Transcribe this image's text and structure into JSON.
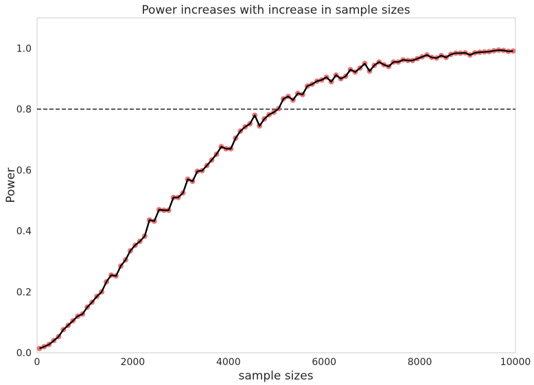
{
  "chart_data": {
    "type": "line",
    "title": "Power increases with increase in sample sizes",
    "xlabel": "sample sizes",
    "ylabel": "Power",
    "xlim": [
      0,
      10000
    ],
    "ylim": [
      0,
      1.1
    ],
    "xticks": [
      0,
      2000,
      4000,
      6000,
      8000,
      10000
    ],
    "xtick_labels": [
      "0",
      "2000",
      "4000",
      "6000",
      "8000",
      "10000"
    ],
    "yticks": [
      0.0,
      0.2,
      0.4,
      0.6,
      0.8,
      1.0
    ],
    "ytick_labels": [
      "0.0",
      "0.2",
      "0.4",
      "0.6",
      "0.8",
      "1.0"
    ],
    "grid": false,
    "reference_line": {
      "y": 0.8,
      "style": "dashed",
      "color": "#333333"
    },
    "line_color": "#000000",
    "marker_color": "#e8696b",
    "x": [
      50,
      150,
      250,
      350,
      450,
      550,
      650,
      750,
      850,
      950,
      1050,
      1150,
      1250,
      1350,
      1450,
      1550,
      1650,
      1750,
      1850,
      1950,
      2050,
      2150,
      2250,
      2350,
      2450,
      2550,
      2650,
      2750,
      2850,
      2950,
      3050,
      3150,
      3250,
      3350,
      3450,
      3550,
      3650,
      3750,
      3850,
      3950,
      4050,
      4150,
      4250,
      4350,
      4450,
      4550,
      4650,
      4750,
      4850,
      4950,
      5050,
      5150,
      5250,
      5350,
      5450,
      5550,
      5650,
      5750,
      5850,
      5950,
      6050,
      6150,
      6250,
      6350,
      6450,
      6550,
      6650,
      6750,
      6850,
      6950,
      7050,
      7150,
      7250,
      7350,
      7450,
      7550,
      7650,
      7750,
      7850,
      7950,
      8050,
      8150,
      8250,
      8350,
      8450,
      8550,
      8650,
      8750,
      8850,
      8950,
      9050,
      9150,
      9250,
      9350,
      9450,
      9550,
      9650,
      9750,
      9850,
      9950
    ],
    "values": [
      0.014,
      0.02,
      0.027,
      0.04,
      0.053,
      0.076,
      0.09,
      0.105,
      0.12,
      0.127,
      0.15,
      0.166,
      0.185,
      0.2,
      0.233,
      0.255,
      0.252,
      0.285,
      0.305,
      0.335,
      0.353,
      0.366,
      0.383,
      0.436,
      0.432,
      0.47,
      0.468,
      0.468,
      0.51,
      0.51,
      0.525,
      0.57,
      0.563,
      0.596,
      0.598,
      0.615,
      0.633,
      0.652,
      0.677,
      0.67,
      0.67,
      0.705,
      0.728,
      0.742,
      0.752,
      0.78,
      0.745,
      0.768,
      0.782,
      0.79,
      0.802,
      0.834,
      0.842,
      0.83,
      0.852,
      0.848,
      0.876,
      0.882,
      0.892,
      0.896,
      0.905,
      0.89,
      0.912,
      0.9,
      0.908,
      0.93,
      0.922,
      0.935,
      0.95,
      0.925,
      0.944,
      0.955,
      0.946,
      0.94,
      0.955,
      0.955,
      0.962,
      0.96,
      0.96,
      0.966,
      0.972,
      0.978,
      0.97,
      0.968,
      0.976,
      0.97,
      0.98,
      0.984,
      0.984,
      0.985,
      0.978,
      0.985,
      0.987,
      0.988,
      0.989,
      0.992,
      0.994,
      0.993,
      0.99,
      0.991
    ]
  }
}
